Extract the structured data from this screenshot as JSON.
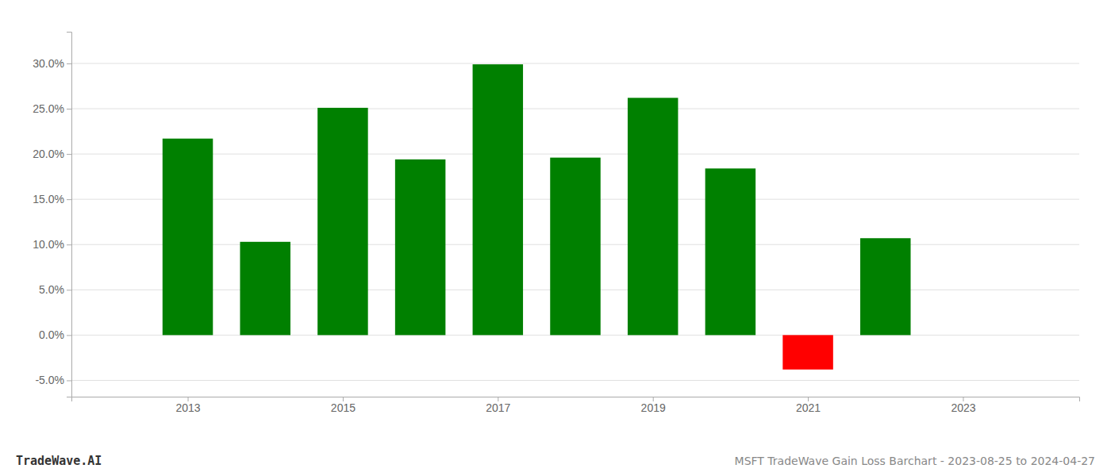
{
  "chart_data": {
    "type": "bar",
    "x": [
      2013,
      2014,
      2015,
      2016,
      2017,
      2018,
      2019,
      2020,
      2021,
      2022
    ],
    "values": [
      0.217,
      0.103,
      0.251,
      0.194,
      0.299,
      0.196,
      0.262,
      0.184,
      -0.038,
      0.107
    ],
    "colors": [
      "#008000",
      "#008000",
      "#008000",
      "#008000",
      "#008000",
      "#008000",
      "#008000",
      "#008000",
      "#ff0000",
      "#008000"
    ],
    "xlim": [
      2011.5,
      2024.5
    ],
    "xticks": [
      2013,
      2015,
      2017,
      2019,
      2021,
      2023
    ],
    "ylim": [
      -0.068,
      0.335
    ],
    "yticks": [
      {
        "value": -0.05,
        "label": "-5.0%"
      },
      {
        "value": 0.0,
        "label": "0.0%"
      },
      {
        "value": 0.05,
        "label": "5.0%"
      },
      {
        "value": 0.1,
        "label": "10.0%"
      },
      {
        "value": 0.15,
        "label": "15.0%"
      },
      {
        "value": 0.2,
        "label": "20.0%"
      },
      {
        "value": 0.25,
        "label": "25.0%"
      },
      {
        "value": 0.3,
        "label": "30.0%"
      }
    ],
    "grid": true,
    "annotations": [
      "TradeWave.AI",
      "MSFT TradeWave Gain Loss Barchart - 2023-08-25 to 2024-04-27"
    ]
  }
}
